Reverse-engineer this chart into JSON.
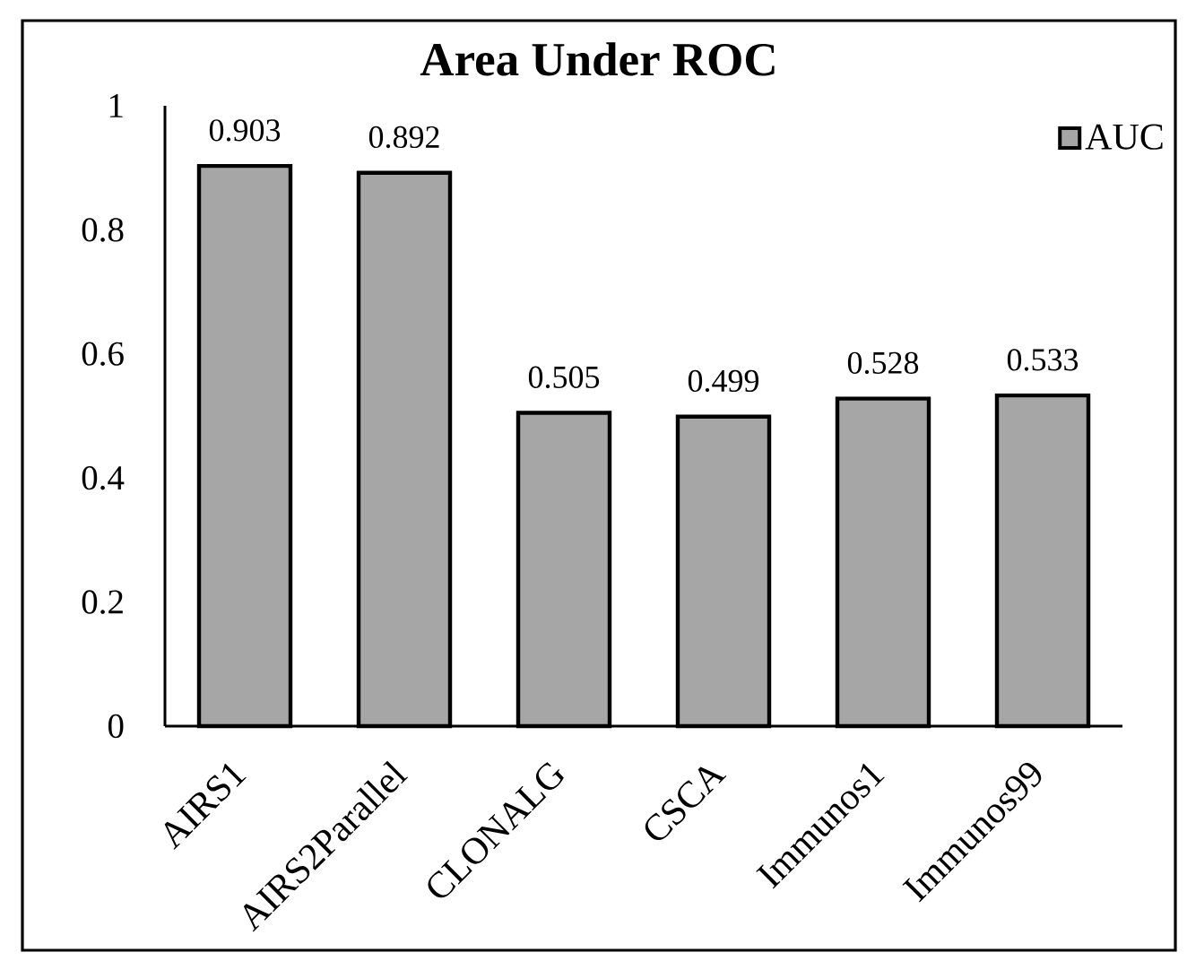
{
  "chart_data": {
    "type": "bar",
    "title": "Area Under ROC",
    "categories": [
      "AIRS1",
      "AIRS2Parallel",
      "CLONALG",
      "CSCA",
      "Immunos1",
      "Immunos99"
    ],
    "series": [
      {
        "name": "AUC",
        "color": "#a6a6a6",
        "values": [
          0.903,
          0.892,
          0.505,
          0.499,
          0.528,
          0.533
        ]
      }
    ],
    "ylim": [
      0,
      1
    ],
    "yticks": [
      0,
      0.2,
      0.4,
      0.6,
      0.8,
      1
    ],
    "data_labels": true,
    "legend": "top right"
  }
}
